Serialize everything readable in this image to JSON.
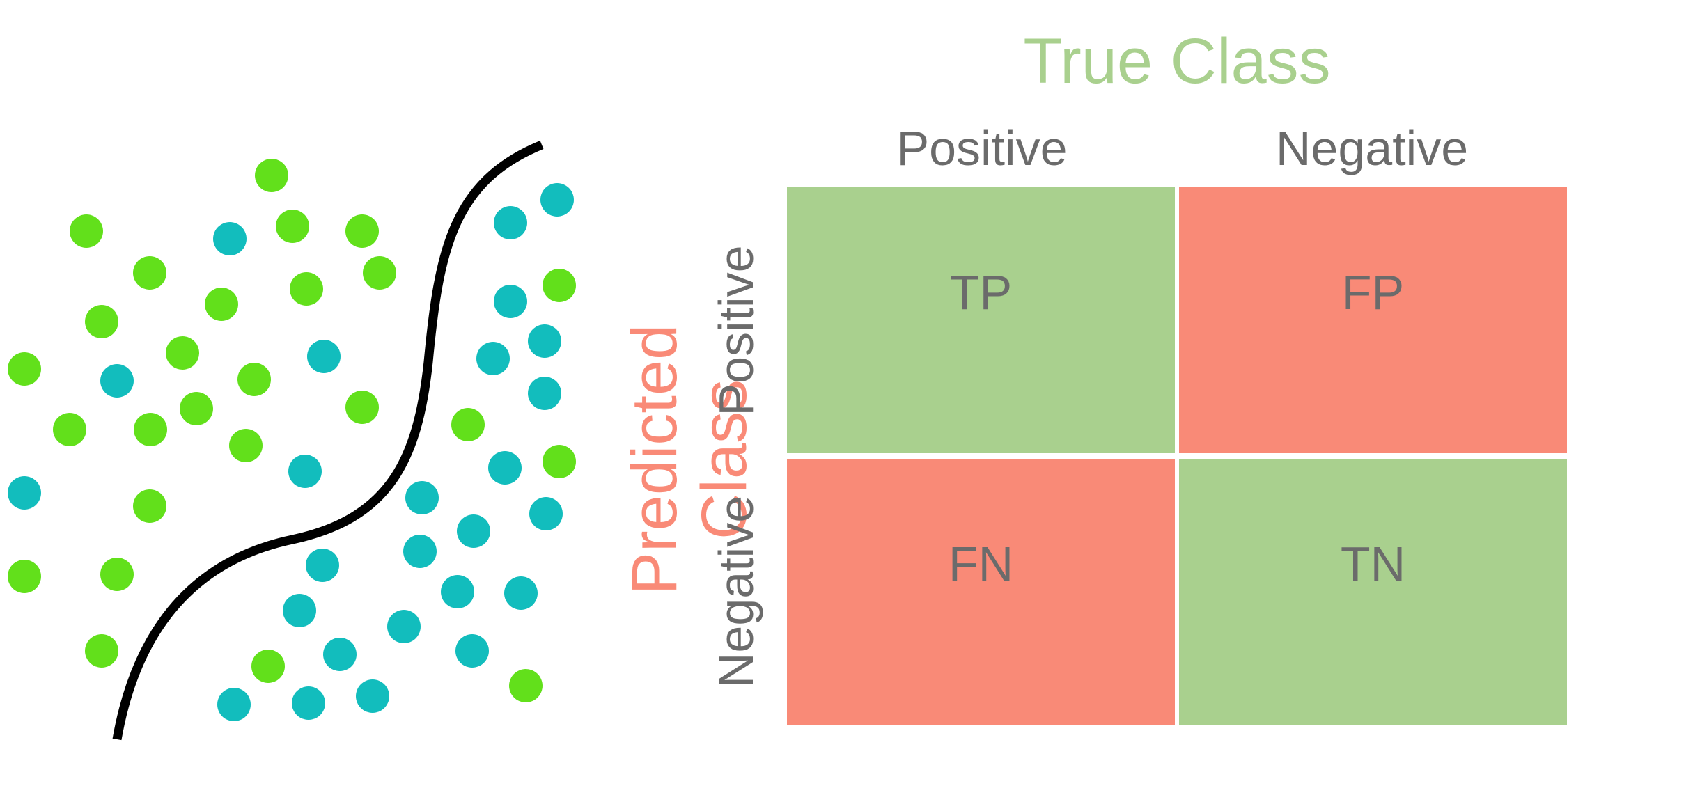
{
  "colors": {
    "green_class": "#62e01b",
    "teal_class": "#12bdbd",
    "boundary": "#000000",
    "true_label": "#a9d08e",
    "pred_label": "#f98a77",
    "cell_correct": "#a9d08e",
    "cell_error": "#f98a77",
    "text_gray": "#6b6b6b"
  },
  "matrix": {
    "true_title": "True Class",
    "pred_title": "Predicted Class",
    "col_positive": "Positive",
    "col_negative": "Negative",
    "row_positive": "Positive",
    "row_negative": "Negative",
    "cells": {
      "tp": "TP",
      "fp": "FP",
      "fn": "FN",
      "tn": "TN"
    }
  }
}
